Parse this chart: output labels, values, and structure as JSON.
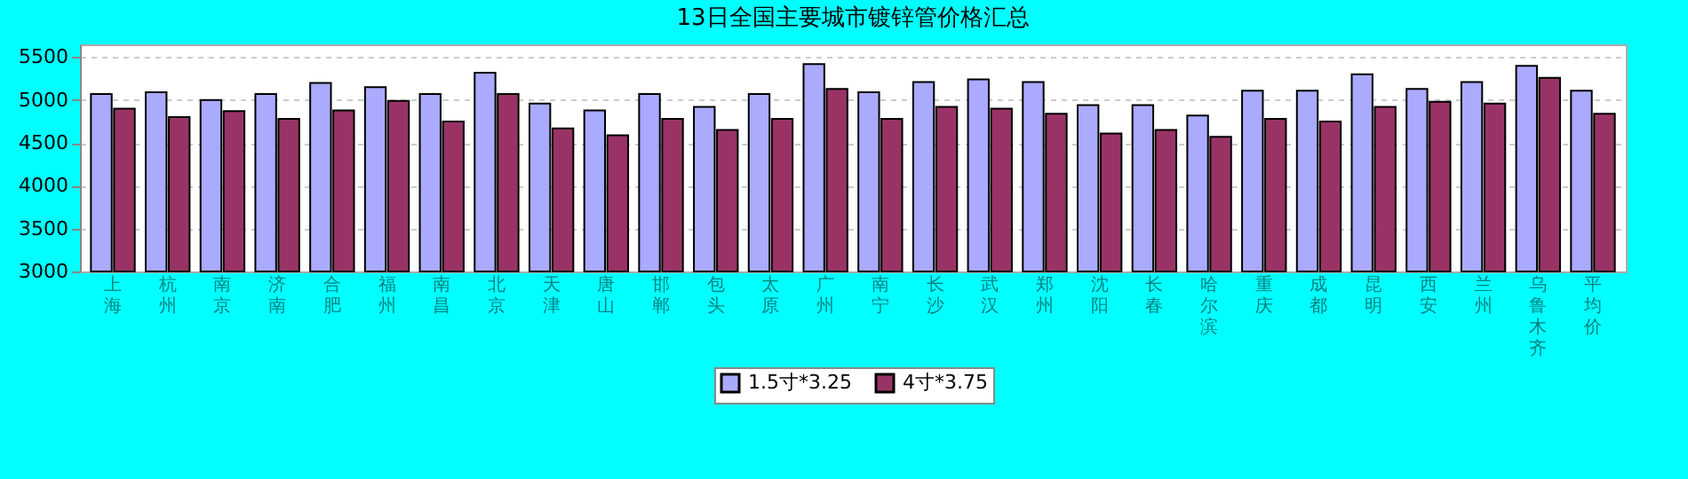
{
  "chart_data": {
    "type": "bar",
    "title": "13日全国主要城市镀锌管价格汇总",
    "categories": [
      "上海",
      "杭州",
      "南京",
      "济南",
      "合肥",
      "福州",
      "南昌",
      "北京",
      "天津",
      "唐山",
      "邯郸",
      "包头",
      "太原",
      "广州",
      "南宁",
      "长沙",
      "武汉",
      "郑州",
      "沈阳",
      "长春",
      "哈尔滨",
      "重庆",
      "成都",
      "昆明",
      "西安",
      "兰州",
      "乌鲁木齐",
      "平均价"
    ],
    "series": [
      {
        "name": "1.5寸*3.25",
        "color": "#aaaaff",
        "values": [
          5070,
          5090,
          5000,
          5070,
          5200,
          5150,
          5070,
          5320,
          4960,
          4880,
          5070,
          4920,
          5070,
          5420,
          5090,
          5210,
          5240,
          5210,
          4940,
          4940,
          4820,
          5110,
          5110,
          5300,
          5130,
          5210,
          5400,
          5110
        ]
      },
      {
        "name": "4寸*3.75",
        "color": "#993366",
        "values": [
          4900,
          4800,
          4870,
          4780,
          4880,
          4990,
          4750,
          5070,
          4670,
          4590,
          4780,
          4650,
          4780,
          5130,
          4780,
          4920,
          4900,
          4840,
          4610,
          4650,
          4570,
          4780,
          4750,
          4920,
          4980,
          4960,
          5260,
          4840
        ]
      }
    ],
    "ylim": [
      3000,
      5650
    ],
    "yticks": [
      3000,
      3500,
      4000,
      4500,
      5000,
      5500
    ],
    "grid": "y",
    "legend": "bottom"
  }
}
